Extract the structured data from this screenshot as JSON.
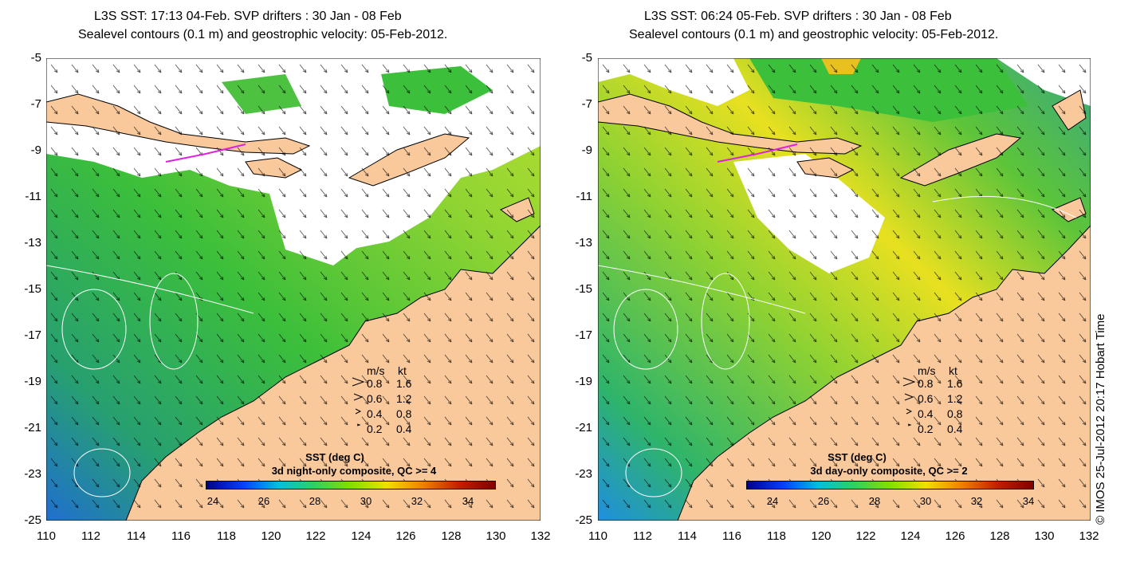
{
  "panels": [
    {
      "title_line1": "L3S SST: 17:13 04-Feb. SVP drifters : 30 Jan - 08 Feb",
      "title_line2": "Sealevel contours (0.1 m) and geostrophic velocity: 05-Feb-2012.",
      "colorbar_title": "SST (deg C)",
      "colorbar_subtitle": "3d night-only composite, QC >= 4",
      "colorbar_ticks": [
        "24",
        "26",
        "28",
        "30",
        "32",
        "34"
      ]
    },
    {
      "title_line1": "L3S SST: 06:24 05-Feb. SVP drifters : 30 Jan - 08 Feb",
      "title_line2": "Sealevel contours (0.1 m) and geostrophic velocity: 05-Feb-2012.",
      "colorbar_title": "SST (deg C)",
      "colorbar_subtitle": "3d day-only composite, QC >= 2",
      "colorbar_ticks": [
        "24",
        "26",
        "28",
        "30",
        "32",
        "34"
      ]
    }
  ],
  "y_ticks": [
    "-5",
    "-7",
    "-9",
    "-11",
    "-13",
    "-15",
    "-17",
    "-19",
    "-21",
    "-23",
    "-25"
  ],
  "x_ticks": [
    "110",
    "112",
    "114",
    "116",
    "118",
    "120",
    "122",
    "124",
    "126",
    "128",
    "130",
    "132"
  ],
  "velocity_legend": {
    "header_ms": "m/s",
    "header_kt": "kt",
    "rows": [
      {
        "ms": "0.8",
        "kt": "1.6"
      },
      {
        "ms": "0.6",
        "kt": "1.2"
      },
      {
        "ms": "0.4",
        "kt": "0.8"
      },
      {
        "ms": "0.2",
        "kt": "0.4"
      }
    ]
  },
  "credit": "© IMOS 25-Jul-2012 20:17 Hobart Time",
  "colors": {
    "land": "#f9c89b",
    "sst_low": "#1f6fd0",
    "sst_mid": "#2fb84a",
    "sst_high": "#f0e020",
    "contour": "#ffffff",
    "drifter": "#e020e0"
  }
}
